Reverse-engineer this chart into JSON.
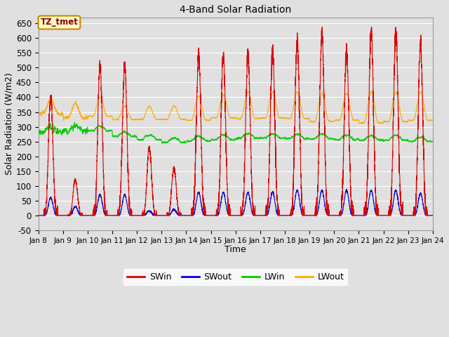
{
  "title": "4-Band Solar Radiation",
  "xlabel": "Time",
  "ylabel": "Solar Radiation (W/m2)",
  "ylim": [
    -50,
    670
  ],
  "bg_color": "#e0e0e0",
  "plot_bg_color": "#e0e0e0",
  "white_area_color": "#ffffff",
  "grid_color": "#ffffff",
  "annotation_text": "TZ_tmet",
  "annotation_bg": "#ffffcc",
  "annotation_border": "#cc8800",
  "annotation_text_color": "#880000",
  "legend_entries": [
    "SWin",
    "SWout",
    "LWin",
    "LWout"
  ],
  "legend_colors": [
    "#dd0000",
    "#0000cc",
    "#00cc00",
    "#ffaa00"
  ],
  "line_width": 0.8,
  "n_days": 16,
  "start_day": 8,
  "end_day": 23,
  "figsize": [
    6.4,
    4.8
  ],
  "dpi": 100
}
